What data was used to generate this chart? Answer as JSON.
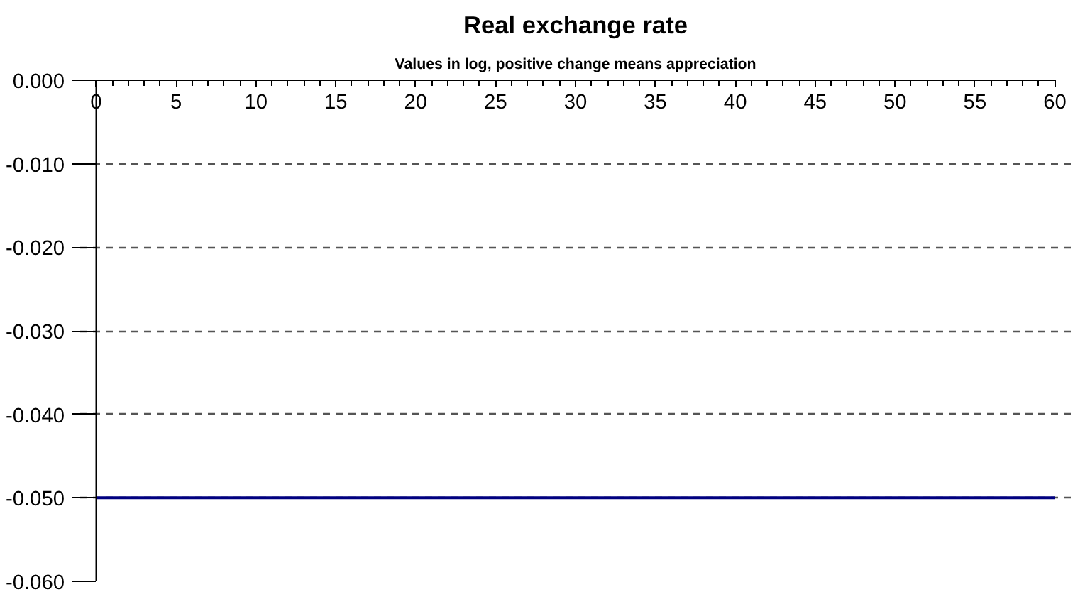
{
  "chart_data": {
    "type": "line",
    "title": "Real exchange rate",
    "subtitle": "Values in log, positive change means appreciation",
    "x": [
      0,
      60
    ],
    "series": [
      {
        "color": "#000080",
        "values": [
          -0.05,
          -0.05
        ]
      }
    ],
    "xlim": [
      0,
      60
    ],
    "xticks": [
      0,
      5,
      10,
      15,
      20,
      25,
      30,
      35,
      40,
      45,
      50,
      55,
      60
    ],
    "ylim": [
      -0.06,
      0.0
    ],
    "yticks": [
      {
        "value": 0,
        "label": "0.000"
      },
      {
        "value": -0.01,
        "label": "-0.010"
      },
      {
        "value": -0.02,
        "label": "-0.020"
      },
      {
        "value": -0.03,
        "label": "-0.030"
      },
      {
        "value": -0.04,
        "label": "-0.040"
      },
      {
        "value": -0.05,
        "label": "-0.050"
      },
      {
        "value": -0.06,
        "label": "-0.060"
      }
    ],
    "grid": "y",
    "line_style": "solid"
  }
}
